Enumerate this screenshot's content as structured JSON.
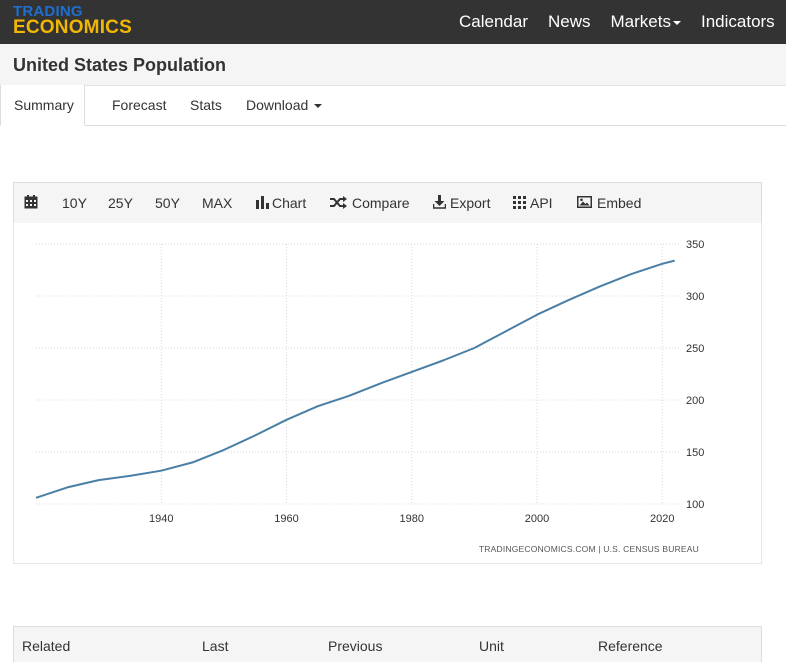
{
  "brand": {
    "top": "TRADING",
    "bottom": "ECONOMICS",
    "top_color": "#1d6fd0",
    "bottom_color": "#f2b705"
  },
  "nav": {
    "items": [
      {
        "label": "Calendar",
        "dropdown": false
      },
      {
        "label": "News",
        "dropdown": false
      },
      {
        "label": "Markets",
        "dropdown": true
      },
      {
        "label": "Indicators",
        "dropdown": false
      }
    ]
  },
  "page": {
    "title": "United States Population"
  },
  "tabs": [
    {
      "label": "Summary",
      "active": true
    },
    {
      "label": "Forecast",
      "active": false
    },
    {
      "label": "Stats",
      "active": false
    },
    {
      "label": "Download",
      "active": false,
      "dropdown": true
    }
  ],
  "toolbar": {
    "calendar_icon": "calendar-icon",
    "ranges": [
      "10Y",
      "25Y",
      "50Y",
      "MAX"
    ],
    "chart_label": "Chart",
    "compare_label": "Compare",
    "export_label": "Export",
    "api_label": "API",
    "embed_label": "Embed"
  },
  "chart_data": {
    "type": "line",
    "title": "",
    "xlabel": "",
    "ylabel": "",
    "xlim": [
      1920,
      2023
    ],
    "ylim": [
      100,
      350
    ],
    "x_ticks": [
      1940,
      1960,
      1980,
      2000,
      2020
    ],
    "y_ticks": [
      100,
      150,
      200,
      250,
      300,
      350
    ],
    "grid": true,
    "y_axis_side": "right",
    "line_color": "#4a7fa5",
    "series": [
      {
        "x": [
          1920,
          1925,
          1930,
          1935,
          1940,
          1945,
          1950,
          1955,
          1960,
          1965,
          1970,
          1975,
          1980,
          1985,
          1990,
          1995,
          2000,
          2005,
          2010,
          2015,
          2020,
          2022
        ],
        "values": [
          106,
          116,
          123,
          127,
          132,
          140,
          152,
          166,
          181,
          194,
          204,
          216,
          227,
          238,
          250,
          266,
          282,
          296,
          309,
          321,
          331,
          334
        ]
      }
    ],
    "source": "TRADINGECONOMICS.COM  |  U.S. CENSUS BUREAU"
  },
  "related_table": {
    "headers": [
      "Related",
      "Last",
      "Previous",
      "Unit",
      "Reference"
    ]
  }
}
